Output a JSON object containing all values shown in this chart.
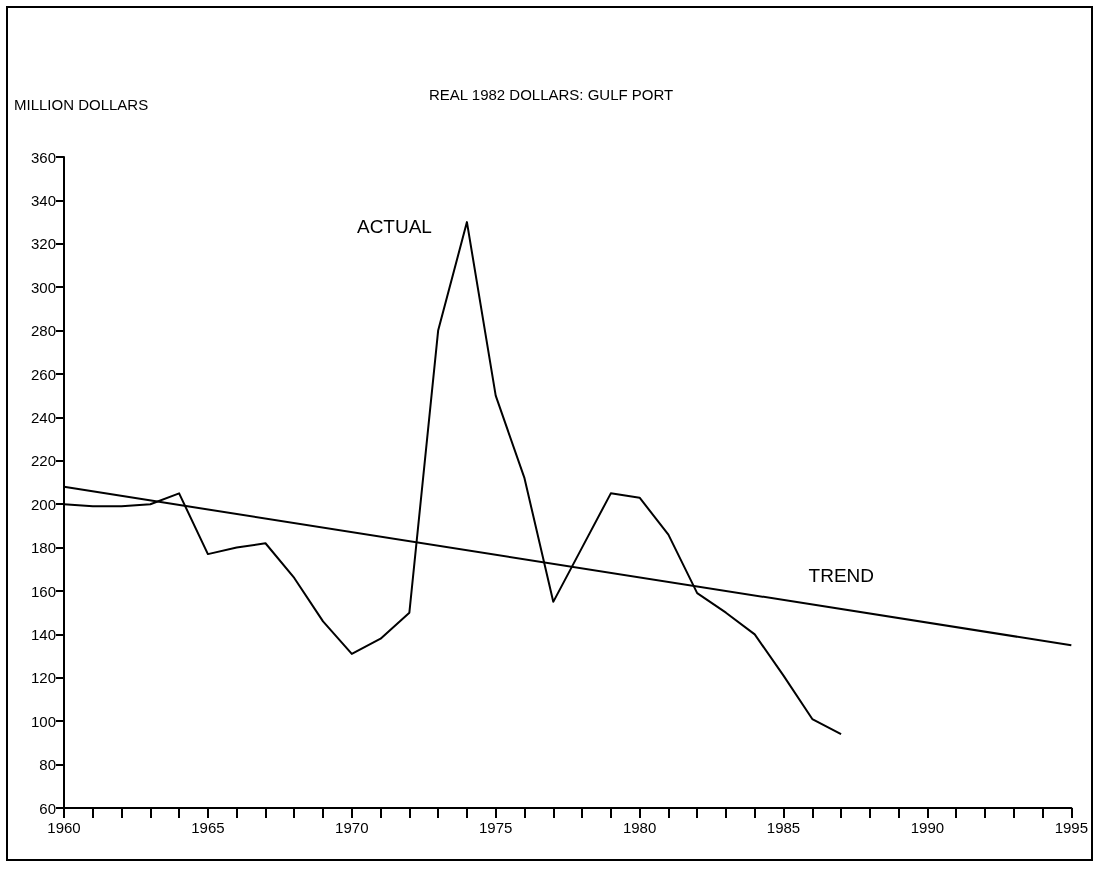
{
  "chart_data": {
    "type": "line",
    "title": "REAL 1982 DOLLARS: GULF PORT",
    "ylabel": "MILLION DOLLARS",
    "grid": false,
    "legend": false,
    "marker": "none",
    "line_style": "solid",
    "xlim": [
      1960,
      1995
    ],
    "ylim": [
      60,
      360
    ],
    "xticks": [
      1960,
      {
        "value": 1961,
        "label": null
      },
      {
        "value": 1962,
        "label": null
      },
      {
        "value": 1963,
        "label": null
      },
      {
        "value": 1964,
        "label": null
      },
      1965,
      {
        "value": 1966,
        "label": null
      },
      {
        "value": 1967,
        "label": null
      },
      {
        "value": 1968,
        "label": null
      },
      {
        "value": 1969,
        "label": null
      },
      1970,
      {
        "value": 1971,
        "label": null
      },
      {
        "value": 1972,
        "label": null
      },
      {
        "value": 1973,
        "label": null
      },
      {
        "value": 1974,
        "label": null
      },
      1975,
      {
        "value": 1976,
        "label": null
      },
      {
        "value": 1977,
        "label": null
      },
      {
        "value": 1978,
        "label": null
      },
      {
        "value": 1979,
        "label": null
      },
      1980,
      {
        "value": 1981,
        "label": null
      },
      {
        "value": 1982,
        "label": null
      },
      {
        "value": 1983,
        "label": null
      },
      {
        "value": 1984,
        "label": null
      },
      1985,
      {
        "value": 1986,
        "label": null
      },
      {
        "value": 1987,
        "label": null
      },
      {
        "value": 1988,
        "label": null
      },
      {
        "value": 1989,
        "label": null
      },
      1990,
      {
        "value": 1991,
        "label": null
      },
      {
        "value": 1992,
        "label": null
      },
      {
        "value": 1993,
        "label": null
      },
      {
        "value": 1994,
        "label": null
      },
      1995
    ],
    "yticks": [
      60,
      80,
      100,
      120,
      140,
      160,
      180,
      200,
      220,
      240,
      260,
      280,
      300,
      320,
      340,
      360
    ],
    "series": [
      {
        "name": "ACTUAL",
        "color": "#000000",
        "x": [
          1960,
          1961,
          1962,
          1963,
          1964,
          1965,
          1966,
          1967,
          1968,
          1969,
          1970,
          1971,
          1972,
          1973,
          1974,
          1975,
          1976,
          1977,
          1978,
          1979,
          1980,
          1981,
          1982,
          1983,
          1984,
          1985,
          1986,
          1987
        ],
        "values": [
          200,
          199,
          199,
          200,
          205,
          177,
          180,
          182,
          166,
          146,
          131,
          138,
          150,
          280,
          330,
          250,
          212,
          155,
          180,
          205,
          203,
          186,
          159,
          150,
          140,
          121,
          101,
          94
        ]
      },
      {
        "name": "TREND",
        "color": "#000000",
        "x": [
          1960,
          1995
        ],
        "values": [
          208,
          135
        ]
      }
    ]
  }
}
